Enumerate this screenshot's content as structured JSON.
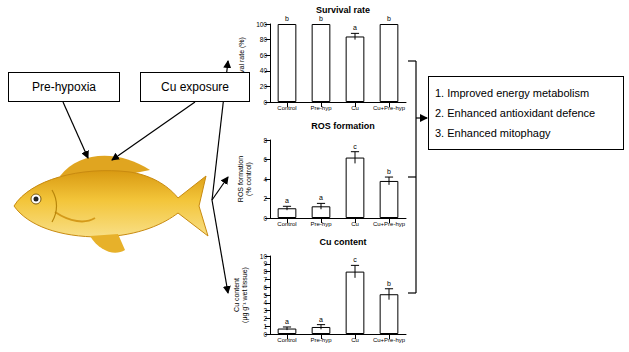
{
  "inputs": [
    "Pre-hypoxia",
    "Cu exposure"
  ],
  "chart_data": [
    {
      "type": "bar",
      "title": "Survival rate",
      "categories": [
        "Control",
        "Pre-hyp",
        "Cu",
        "Cu+Pre-hyp"
      ],
      "values": [
        100,
        100,
        84,
        100
      ],
      "errors": [
        0,
        0,
        4,
        0
      ],
      "letters": [
        "b",
        "b",
        "a",
        "b"
      ],
      "ylabel": "Survival rate (%)",
      "ylim": [
        0,
        100
      ],
      "yticks": [
        0,
        20,
        40,
        60,
        80,
        100
      ],
      "color": "#ffffff",
      "grid": false
    },
    {
      "type": "bar",
      "title": "ROS formation",
      "categories": [
        "Control",
        "Pre-hyp",
        "Cu",
        "Cu+Pre-hyp"
      ],
      "values": [
        1.0,
        1.2,
        6.2,
        3.8
      ],
      "errors": [
        0.2,
        0.3,
        0.6,
        0.4
      ],
      "letters": [
        "a",
        "a",
        "c",
        "b"
      ],
      "ylabel": "ROS formation (% control)",
      "ylim": [
        0,
        8
      ],
      "yticks": [
        0,
        2,
        4,
        6,
        8
      ],
      "color": "#ffffff",
      "grid": false
    },
    {
      "type": "bar",
      "title": "Cu content",
      "categories": [
        "Control",
        "Pre-hyp",
        "Cu",
        "Cu+Pre-hyp"
      ],
      "values": [
        0.7,
        0.9,
        8.0,
        5.1
      ],
      "errors": [
        0.2,
        0.3,
        0.8,
        0.7
      ],
      "letters": [
        "a",
        "a",
        "c",
        "b"
      ],
      "ylabel": "Cu content (μg g⁻¹ wet tissue)",
      "ylim": [
        0,
        10
      ],
      "yticks": [
        0,
        1,
        2,
        3,
        4,
        5,
        6,
        7,
        8,
        9,
        10
      ],
      "color": "#ffffff",
      "grid": false
    }
  ],
  "outcomes": [
    "1. Improved energy metabolism",
    "2. Enhanced antioxidant defence",
    "3. Enhanced mitophagy"
  ]
}
